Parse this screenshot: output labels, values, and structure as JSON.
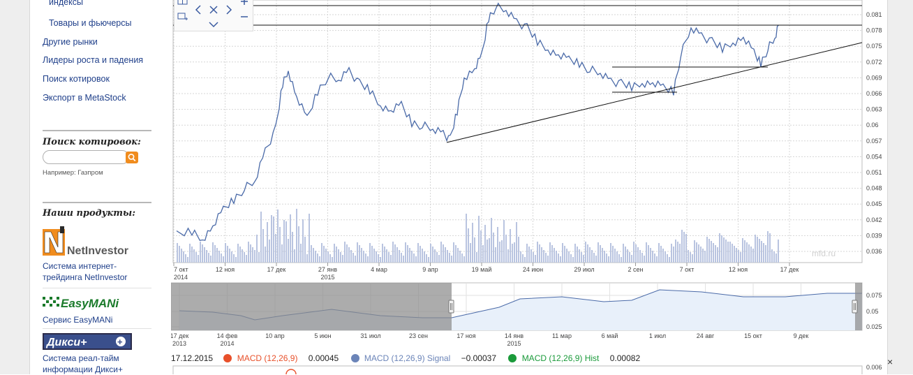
{
  "sidebar": {
    "links": [
      {
        "label": "индексы"
      },
      {
        "label": "Товары и фьючерсы"
      },
      {
        "label": "Другие рынки"
      },
      {
        "label": "Лидеры роста и падения"
      },
      {
        "label": "Поиск котировок"
      },
      {
        "label": "Экспорт в MetaStock"
      }
    ],
    "search": {
      "heading": "Поиск котировок:",
      "placeholder": "",
      "example": "Например: Газпром"
    },
    "products": {
      "heading": "Наши продукты:",
      "items": [
        {
          "logo": "NetInvestor",
          "desc_line1": "Система интернет-",
          "desc_line2": "трейдинга ",
          "desc_bold": "NetInvestor"
        },
        {
          "logo": "EasyMANi",
          "desc_line1": "Сервис EasyMANi"
        },
        {
          "logo": "Дикси+",
          "desc_line1": "Система реал-тайм",
          "desc_line2": "информации Дикси+"
        }
      ]
    }
  },
  "chart": {
    "watermark": "mfd.ru",
    "y_ticks": [
      "0.081",
      "0.078",
      "0.075",
      "0.072",
      "0.069",
      "0.066",
      "0.063",
      "0.06",
      "0.057",
      "0.054",
      "0.051",
      "0.048",
      "0.045",
      "0.042",
      "0.039",
      "0.036"
    ],
    "x_ticks": [
      {
        "label": "7 окт",
        "sub": "2014"
      },
      {
        "label": "12 ноя",
        "sub": ""
      },
      {
        "label": "17 дек",
        "sub": ""
      },
      {
        "label": "27 янв",
        "sub": "2015"
      },
      {
        "label": "4 мар",
        "sub": ""
      },
      {
        "label": "9 апр",
        "sub": ""
      },
      {
        "label": "19 май",
        "sub": ""
      },
      {
        "label": "24 июн",
        "sub": ""
      },
      {
        "label": "29 июл",
        "sub": ""
      },
      {
        "label": "2 сен",
        "sub": ""
      },
      {
        "label": "7 окт",
        "sub": ""
      },
      {
        "label": "12 ноя",
        "sub": ""
      },
      {
        "label": "17 дек",
        "sub": ""
      }
    ],
    "nav_y_ticks": [
      "0.075",
      "0.05",
      "0.025"
    ],
    "nav_x_ticks": [
      {
        "label": "17 дек",
        "sub": "2013"
      },
      {
        "label": "14 фев",
        "sub": "2014"
      },
      {
        "label": "10 апр",
        "sub": ""
      },
      {
        "label": "5 июн",
        "sub": ""
      },
      {
        "label": "31 июл",
        "sub": ""
      },
      {
        "label": "23 сен",
        "sub": ""
      },
      {
        "label": "17 ноя",
        "sub": ""
      },
      {
        "label": "14 янв",
        "sub": "2015"
      },
      {
        "label": "11 мар",
        "sub": ""
      },
      {
        "label": "6 май",
        "sub": ""
      },
      {
        "label": "1 июл",
        "sub": ""
      },
      {
        "label": "24 авг",
        "sub": ""
      },
      {
        "label": "15 окт",
        "sub": ""
      },
      {
        "label": "9 дек",
        "sub": ""
      }
    ],
    "macd_y_tick": "0.006"
  },
  "legend": {
    "date": "17.12.2015",
    "macd": {
      "name": "MACD (12,26,9)",
      "value": "0.00045",
      "color": "#e8502a"
    },
    "signal": {
      "name": "MACD (12,26,9) Signal",
      "value": "−0.00037",
      "color": "#6b84b8"
    },
    "hist": {
      "name": "MACD (12,26,9) Hist",
      "value": "0.00082",
      "color": "#1a9a3a"
    }
  },
  "close_label": "×",
  "colors": {
    "price": "#4a6aa8",
    "volume": "#b9c4e0",
    "navFill": "#e8f0fa",
    "navShade": "#8c8c8c",
    "orange": "#f08c1e"
  }
}
